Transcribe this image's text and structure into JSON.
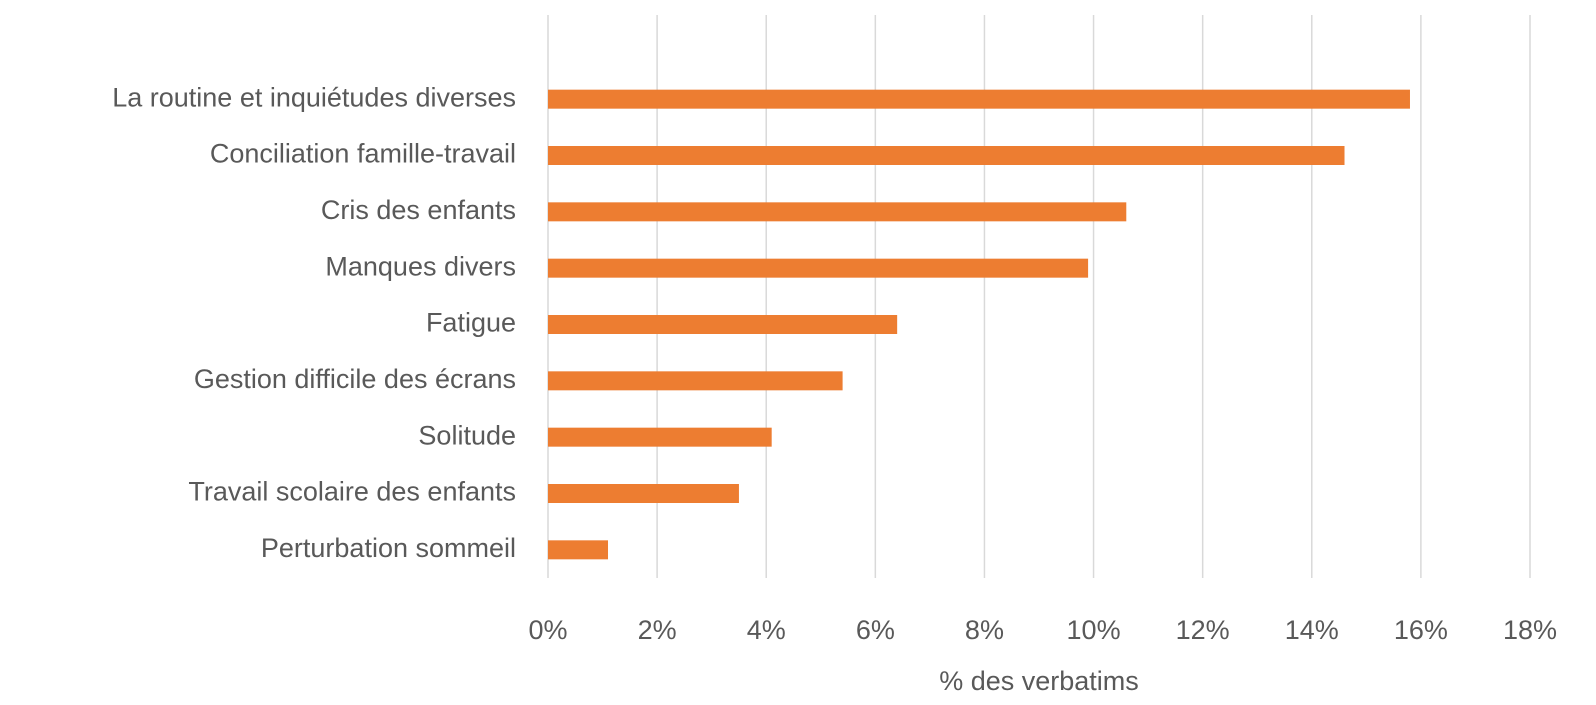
{
  "chart_data": {
    "type": "barh",
    "categories": [
      "La routine et inquiétudes diverses",
      "Conciliation famille-travail",
      "Cris des enfants",
      "Manques divers",
      "Fatigue",
      "Gestion difficile des écrans",
      "Solitude",
      "Travail scolaire des enfants",
      "Perturbation sommeil"
    ],
    "values": [
      15.8,
      14.6,
      10.6,
      9.9,
      6.4,
      5.4,
      4.1,
      3.5,
      1.1
    ],
    "color": "#ed7d31",
    "xlim": [
      0,
      18
    ],
    "xticks": [
      {
        "value": 0,
        "label": "0%"
      },
      {
        "value": 2,
        "label": "2%"
      },
      {
        "value": 4,
        "label": "4%"
      },
      {
        "value": 6,
        "label": "6%"
      },
      {
        "value": 8,
        "label": "8%"
      },
      {
        "value": 10,
        "label": "10%"
      },
      {
        "value": 12,
        "label": "12%"
      },
      {
        "value": 14,
        "label": "14%"
      },
      {
        "value": 16,
        "label": "16%"
      },
      {
        "value": 18,
        "label": "18%"
      }
    ],
    "x_label": "% des verbatims",
    "grid": true
  }
}
